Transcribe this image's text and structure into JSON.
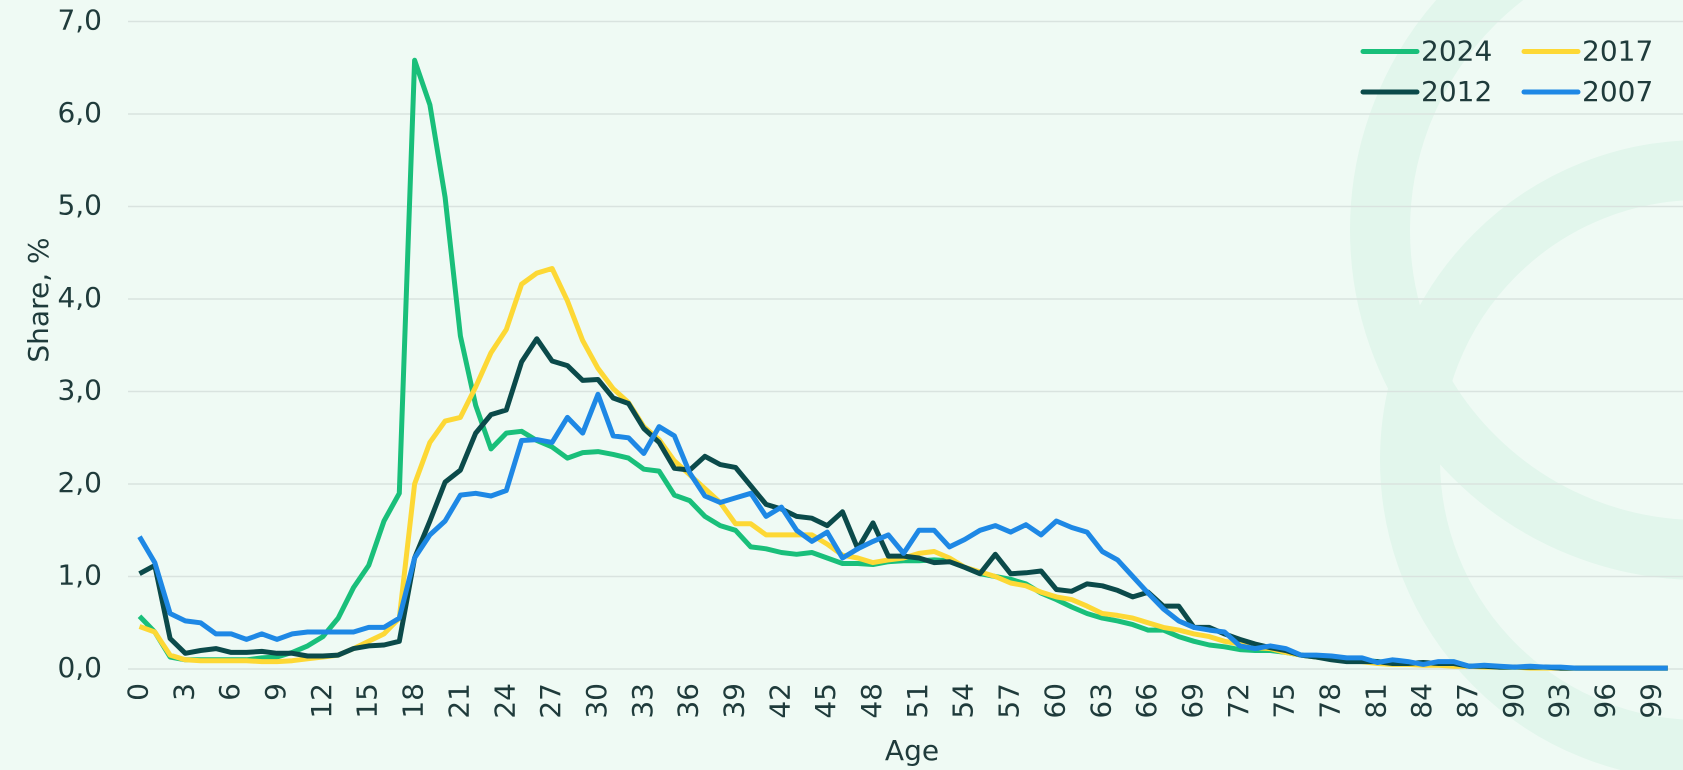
{
  "chart_data": {
    "type": "line",
    "x_label": "Age",
    "y_label": "Share, %",
    "x": [
      0,
      1,
      2,
      3,
      4,
      5,
      6,
      7,
      8,
      9,
      10,
      11,
      12,
      13,
      14,
      15,
      16,
      17,
      18,
      19,
      20,
      21,
      22,
      23,
      24,
      25,
      26,
      27,
      28,
      29,
      30,
      31,
      32,
      33,
      34,
      35,
      36,
      37,
      38,
      39,
      40,
      41,
      42,
      43,
      44,
      45,
      46,
      47,
      48,
      49,
      50,
      51,
      52,
      53,
      54,
      55,
      56,
      57,
      58,
      59,
      60,
      61,
      62,
      63,
      64,
      65,
      66,
      67,
      68,
      69,
      70,
      71,
      72,
      73,
      74,
      75,
      76,
      77,
      78,
      79,
      80,
      81,
      82,
      83,
      84,
      85,
      86,
      87,
      88,
      89,
      90,
      91,
      92,
      93,
      94,
      95,
      96,
      97,
      98,
      99,
      100
    ],
    "xlim": [
      0,
      101
    ],
    "xticks": [
      0,
      3,
      6,
      9,
      12,
      15,
      18,
      21,
      24,
      27,
      30,
      33,
      36,
      39,
      42,
      45,
      48,
      51,
      54,
      57,
      60,
      63,
      66,
      69,
      72,
      75,
      78,
      81,
      84,
      87,
      90,
      93,
      96,
      99
    ],
    "ylim": [
      0,
      7
    ],
    "yticks": [
      {
        "value": 0,
        "label": "0,0"
      },
      {
        "value": 1,
        "label": "1,0"
      },
      {
        "value": 2,
        "label": "2,0"
      },
      {
        "value": 3,
        "label": "3,0"
      },
      {
        "value": 4,
        "label": "4,0"
      },
      {
        "value": 5,
        "label": "5,0"
      },
      {
        "value": 6,
        "label": "6,0"
      },
      {
        "value": 7,
        "label": "7,0"
      }
    ],
    "grid": true,
    "legend": "top-right",
    "series": [
      {
        "name": "2024",
        "color": "#19bf7a",
        "values": [
          0.57,
          0.4,
          0.13,
          0.1,
          0.1,
          0.1,
          0.1,
          0.1,
          0.12,
          0.13,
          0.18,
          0.25,
          0.35,
          0.55,
          0.88,
          1.12,
          1.6,
          1.9,
          6.58,
          6.1,
          5.1,
          3.6,
          2.85,
          2.38,
          2.55,
          2.57,
          2.47,
          2.4,
          2.28,
          2.34,
          2.35,
          2.32,
          2.28,
          2.16,
          2.14,
          1.88,
          1.82,
          1.65,
          1.55,
          1.5,
          1.32,
          1.3,
          1.26,
          1.24,
          1.26,
          1.2,
          1.14,
          1.14,
          1.13,
          1.16,
          1.17,
          1.17,
          1.18,
          1.17,
          1.1,
          1.03,
          1.0,
          0.97,
          0.92,
          0.82,
          0.75,
          0.67,
          0.6,
          0.55,
          0.52,
          0.48,
          0.42,
          0.42,
          0.35,
          0.3,
          0.26,
          0.24,
          0.21,
          0.2,
          0.2,
          0.18,
          0.15,
          0.13,
          0.12,
          0.1,
          0.1,
          0.08,
          0.07,
          0.06,
          0.05,
          0.05,
          0.04,
          0.03,
          0.03,
          0.02,
          0.02,
          0.02,
          0.02,
          0.01,
          0.01,
          0.01,
          0.01,
          0.01,
          0.01,
          0.01,
          0.01
        ]
      },
      {
        "name": "2017",
        "color": "#fdd835",
        "values": [
          0.46,
          0.4,
          0.15,
          0.1,
          0.09,
          0.09,
          0.09,
          0.09,
          0.08,
          0.08,
          0.09,
          0.11,
          0.13,
          0.15,
          0.22,
          0.3,
          0.38,
          0.55,
          2.0,
          2.45,
          2.68,
          2.72,
          3.05,
          3.42,
          3.67,
          4.16,
          4.28,
          4.33,
          3.98,
          3.55,
          3.25,
          3.03,
          2.88,
          2.62,
          2.48,
          2.25,
          2.1,
          1.95,
          1.8,
          1.57,
          1.57,
          1.45,
          1.45,
          1.45,
          1.45,
          1.35,
          1.23,
          1.2,
          1.15,
          1.18,
          1.2,
          1.25,
          1.27,
          1.2,
          1.1,
          1.05,
          1.0,
          0.93,
          0.9,
          0.83,
          0.78,
          0.75,
          0.68,
          0.6,
          0.58,
          0.55,
          0.5,
          0.45,
          0.42,
          0.38,
          0.35,
          0.3,
          0.27,
          0.23,
          0.22,
          0.18,
          0.15,
          0.13,
          0.11,
          0.09,
          0.08,
          0.06,
          0.05,
          0.05,
          0.04,
          0.04,
          0.03,
          0.03,
          0.02,
          0.02,
          0.02,
          0.01,
          0.01,
          0.01,
          0.01,
          0.01,
          0.01,
          0.01,
          0.01,
          0.01,
          0.01
        ]
      },
      {
        "name": "2012",
        "color": "#0b4a4a",
        "values": [
          1.03,
          1.12,
          0.33,
          0.17,
          0.2,
          0.22,
          0.18,
          0.18,
          0.19,
          0.17,
          0.17,
          0.14,
          0.14,
          0.15,
          0.22,
          0.25,
          0.26,
          0.3,
          1.2,
          1.6,
          2.02,
          2.15,
          2.55,
          2.75,
          2.8,
          3.32,
          3.57,
          3.33,
          3.28,
          3.12,
          3.13,
          2.93,
          2.87,
          2.6,
          2.45,
          2.17,
          2.15,
          2.3,
          2.21,
          2.18,
          1.98,
          1.78,
          1.73,
          1.65,
          1.63,
          1.55,
          1.7,
          1.3,
          1.58,
          1.22,
          1.22,
          1.2,
          1.15,
          1.16,
          1.1,
          1.03,
          1.24,
          1.03,
          1.04,
          1.06,
          0.86,
          0.84,
          0.92,
          0.9,
          0.85,
          0.78,
          0.83,
          0.68,
          0.68,
          0.45,
          0.45,
          0.38,
          0.32,
          0.27,
          0.23,
          0.2,
          0.15,
          0.13,
          0.1,
          0.08,
          0.08,
          0.08,
          0.06,
          0.06,
          0.07,
          0.06,
          0.06,
          0.03,
          0.03,
          0.02,
          0.02,
          0.02,
          0.02,
          0.01,
          0.01,
          0.01,
          0.01,
          0.01,
          0.01,
          0.01,
          0.01
        ]
      },
      {
        "name": "2007",
        "color": "#1e88e5",
        "values": [
          1.43,
          1.15,
          0.6,
          0.52,
          0.5,
          0.38,
          0.38,
          0.32,
          0.38,
          0.32,
          0.38,
          0.4,
          0.4,
          0.4,
          0.4,
          0.45,
          0.45,
          0.55,
          1.2,
          1.45,
          1.6,
          1.88,
          1.9,
          1.87,
          1.93,
          2.47,
          2.48,
          2.45,
          2.72,
          2.55,
          2.97,
          2.52,
          2.5,
          2.33,
          2.62,
          2.52,
          2.12,
          1.87,
          1.8,
          1.85,
          1.9,
          1.65,
          1.75,
          1.5,
          1.38,
          1.48,
          1.2,
          1.3,
          1.38,
          1.45,
          1.25,
          1.5,
          1.5,
          1.32,
          1.4,
          1.5,
          1.55,
          1.48,
          1.56,
          1.45,
          1.6,
          1.53,
          1.48,
          1.27,
          1.18,
          1.0,
          0.82,
          0.65,
          0.52,
          0.45,
          0.42,
          0.4,
          0.25,
          0.22,
          0.25,
          0.22,
          0.15,
          0.15,
          0.14,
          0.12,
          0.12,
          0.07,
          0.1,
          0.08,
          0.05,
          0.08,
          0.08,
          0.03,
          0.04,
          0.03,
          0.02,
          0.03,
          0.02,
          0.02,
          0.01,
          0.01,
          0.01,
          0.01,
          0.01,
          0.01,
          0.01
        ]
      }
    ]
  }
}
